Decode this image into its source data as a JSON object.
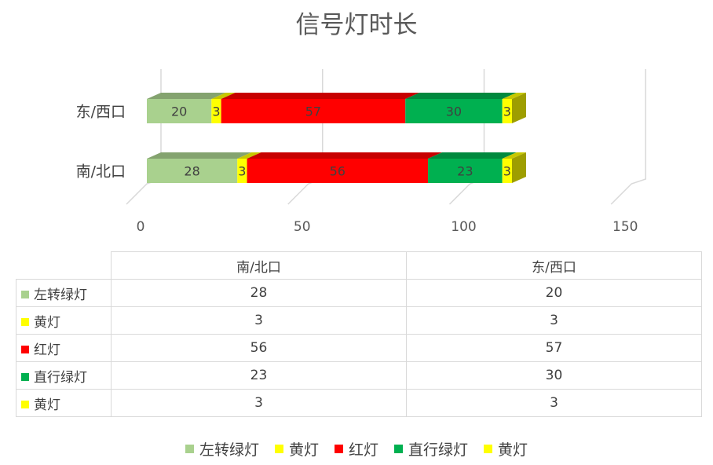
{
  "chart_data": {
    "type": "bar",
    "orientation": "horizontal",
    "stacked": true,
    "three_d": true,
    "title": "信号灯时长",
    "categories": [
      "东/西口",
      "南/北口"
    ],
    "series": [
      {
        "name": "左转绿灯",
        "color": "#a9d18e",
        "values": [
          20,
          28
        ]
      },
      {
        "name": "黄灯",
        "color": "#ffff00",
        "values": [
          3,
          3
        ]
      },
      {
        "name": "红灯",
        "color": "#ff0000",
        "values": [
          57,
          56
        ]
      },
      {
        "name": "直行绿灯",
        "color": "#00b050",
        "values": [
          30,
          23
        ]
      },
      {
        "name": "黄灯",
        "color": "#ffff00",
        "values": [
          3,
          3
        ]
      }
    ],
    "x_ticks": [
      "0",
      "50",
      "100",
      "150"
    ],
    "xlim": [
      0,
      150
    ],
    "grid": true,
    "data_labels": true,
    "legend_position": "bottom"
  },
  "table": {
    "columns": [
      "南/北口",
      "东/西口"
    ],
    "rows": [
      {
        "label": "左转绿灯",
        "color": "#a9d18e",
        "values": [
          "28",
          "20"
        ]
      },
      {
        "label": "黄灯",
        "color": "#ffff00",
        "values": [
          "3",
          "3"
        ]
      },
      {
        "label": "红灯",
        "color": "#ff0000",
        "values": [
          "56",
          "57"
        ]
      },
      {
        "label": "直行绿灯",
        "color": "#00b050",
        "values": [
          "23",
          "30"
        ]
      },
      {
        "label": "黄灯",
        "color": "#ffff00",
        "values": [
          "3",
          "3"
        ]
      }
    ]
  },
  "legend": [
    {
      "label": "左转绿灯",
      "color": "#a9d18e"
    },
    {
      "label": "黄灯",
      "color": "#ffff00"
    },
    {
      "label": "红灯",
      "color": "#ff0000"
    },
    {
      "label": "直行绿灯",
      "color": "#00b050"
    },
    {
      "label": "黄灯",
      "color": "#ffff00"
    }
  ]
}
